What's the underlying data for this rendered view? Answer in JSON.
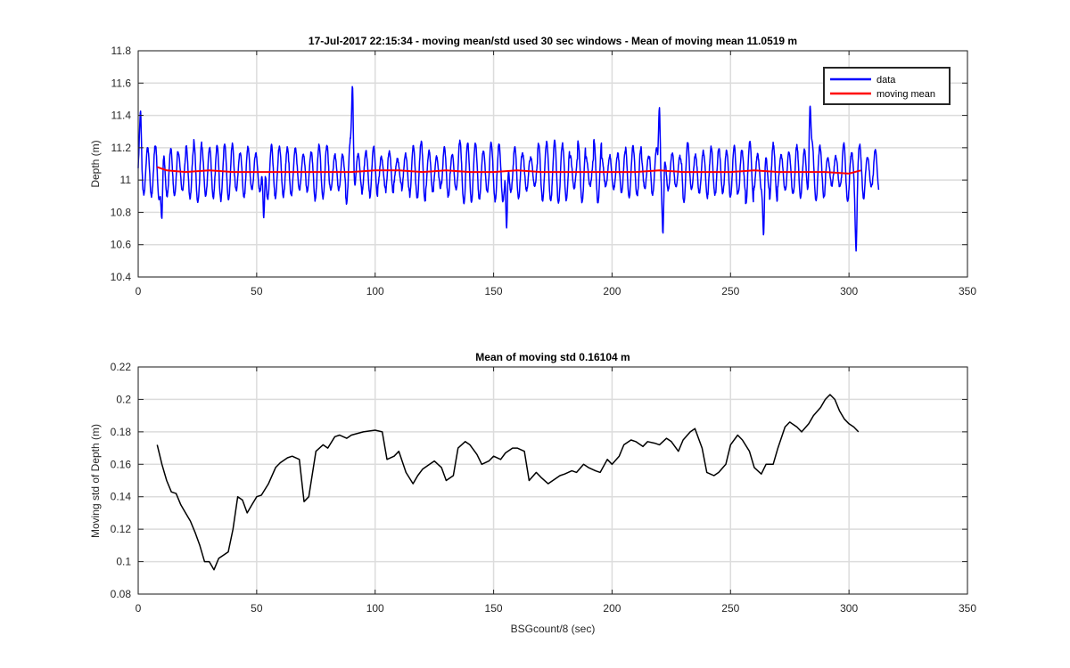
{
  "figure": {
    "background": "#ffffff"
  },
  "chart_data": [
    {
      "type": "line",
      "title": "17-Jul-2017 22:15:34 - moving mean/std used 30 sec windows - Mean of moving mean 11.0519 m",
      "xlabel": "",
      "ylabel": "Depth (m)",
      "xlim": [
        0,
        350
      ],
      "ylim": [
        10.4,
        11.8
      ],
      "xticks": [
        0,
        50,
        100,
        150,
        200,
        250,
        300,
        350
      ],
      "yticks": [
        10.4,
        10.6,
        10.8,
        11,
        11.2,
        11.4,
        11.6,
        11.8
      ],
      "xtick_labels": [
        "0",
        "50",
        "100",
        "150",
        "200",
        "250",
        "300",
        "350"
      ],
      "ytick_labels": [
        "10.4",
        "10.6",
        "10.8",
        "11",
        "11.2",
        "11.4",
        "11.6",
        "11.8"
      ],
      "grid": true,
      "legend": {
        "location": "top-right",
        "entries": [
          "data",
          "moving mean"
        ]
      },
      "series": [
        {
          "name": "data",
          "color": "#0000ff",
          "generator": {
            "x_start": 0,
            "x_end": 312.5,
            "step": 0.125,
            "mean": 11.05,
            "period_sec": 3.3,
            "amplitude_mean": 0.14,
            "peaks": [
              [
                1,
                0.25
              ],
              [
                10,
                -0.37
              ],
              [
                53,
                -0.4
              ],
              [
                90.5,
                0.56
              ],
              [
                155.5,
                -0.46
              ],
              [
                220,
                0.47
              ],
              [
                221.5,
                -0.42
              ],
              [
                264,
                -0.4
              ],
              [
                283.5,
                0.44
              ],
              [
                303,
                -0.38
              ]
            ]
          }
        },
        {
          "name": "moving mean",
          "color": "#ff0000",
          "x": [
            8,
            12,
            20,
            30,
            40,
            50,
            60,
            70,
            80,
            90,
            100,
            110,
            120,
            130,
            140,
            150,
            160,
            170,
            180,
            190,
            200,
            210,
            220,
            230,
            240,
            250,
            260,
            270,
            280,
            290,
            300,
            305
          ],
          "y": [
            11.08,
            11.06,
            11.05,
            11.06,
            11.05,
            11.05,
            11.05,
            11.05,
            11.05,
            11.05,
            11.06,
            11.06,
            11.05,
            11.06,
            11.05,
            11.05,
            11.06,
            11.05,
            11.05,
            11.05,
            11.05,
            11.05,
            11.06,
            11.05,
            11.05,
            11.05,
            11.06,
            11.05,
            11.05,
            11.05,
            11.04,
            11.06
          ]
        }
      ]
    },
    {
      "type": "line",
      "title": "Mean of moving std 0.16104 m",
      "xlabel": "BSGcount/8 (sec)",
      "ylabel": "Moving std of Depth (m)",
      "xlim": [
        0,
        350
      ],
      "ylim": [
        0.08,
        0.22
      ],
      "xticks": [
        0,
        50,
        100,
        150,
        200,
        250,
        300,
        350
      ],
      "yticks": [
        0.08,
        0.1,
        0.12,
        0.14,
        0.16,
        0.18,
        0.2,
        0.22
      ],
      "xtick_labels": [
        "0",
        "50",
        "100",
        "150",
        "200",
        "250",
        "300",
        "350"
      ],
      "ytick_labels": [
        "0.08",
        "0.1",
        "0.12",
        "0.14",
        "0.16",
        "0.18",
        "0.2",
        "0.22"
      ],
      "grid": true,
      "series": [
        {
          "name": "moving std",
          "color": "#000000",
          "x": [
            8,
            10,
            12,
            14,
            16,
            18,
            20,
            22,
            24,
            26,
            28,
            30,
            32,
            34,
            36,
            38,
            40,
            42,
            44,
            46,
            48,
            50,
            52,
            55,
            58,
            60,
            63,
            65,
            68,
            70,
            72,
            75,
            78,
            80,
            83,
            85,
            88,
            90,
            95,
            100,
            103,
            105,
            108,
            110,
            113,
            116,
            118,
            120,
            123,
            125,
            128,
            130,
            133,
            135,
            138,
            140,
            143,
            145,
            148,
            150,
            153,
            155,
            158,
            160,
            163,
            165,
            168,
            170,
            173,
            175,
            178,
            180,
            183,
            185,
            188,
            190,
            193,
            195,
            198,
            200,
            203,
            205,
            208,
            210,
            213,
            215,
            218,
            220,
            223,
            225,
            228,
            230,
            233,
            235,
            238,
            240,
            243,
            245,
            248,
            250,
            253,
            255,
            258,
            260,
            263,
            265,
            268,
            270,
            273,
            275,
            278,
            280,
            283,
            285,
            288,
            290,
            292,
            294,
            296,
            298,
            300,
            302,
            304
          ],
          "y": [
            0.172,
            0.16,
            0.15,
            0.143,
            0.142,
            0.135,
            0.13,
            0.125,
            0.118,
            0.11,
            0.1,
            0.1,
            0.095,
            0.102,
            0.104,
            0.106,
            0.12,
            0.14,
            0.138,
            0.13,
            0.135,
            0.14,
            0.141,
            0.148,
            0.158,
            0.161,
            0.164,
            0.165,
            0.163,
            0.137,
            0.14,
            0.168,
            0.172,
            0.17,
            0.177,
            0.178,
            0.176,
            0.178,
            0.18,
            0.181,
            0.18,
            0.163,
            0.165,
            0.168,
            0.155,
            0.148,
            0.153,
            0.157,
            0.16,
            0.162,
            0.158,
            0.15,
            0.153,
            0.17,
            0.174,
            0.172,
            0.166,
            0.16,
            0.162,
            0.165,
            0.163,
            0.167,
            0.17,
            0.17,
            0.168,
            0.15,
            0.155,
            0.152,
            0.148,
            0.15,
            0.153,
            0.154,
            0.156,
            0.155,
            0.16,
            0.158,
            0.156,
            0.155,
            0.163,
            0.16,
            0.165,
            0.172,
            0.175,
            0.174,
            0.171,
            0.174,
            0.173,
            0.172,
            0.176,
            0.174,
            0.168,
            0.175,
            0.18,
            0.182,
            0.17,
            0.155,
            0.153,
            0.155,
            0.16,
            0.172,
            0.178,
            0.175,
            0.168,
            0.158,
            0.154,
            0.16,
            0.16,
            0.17,
            0.183,
            0.186,
            0.183,
            0.18,
            0.185,
            0.19,
            0.195,
            0.2,
            0.203,
            0.2,
            0.193,
            0.188,
            0.185,
            0.183,
            0.18
          ]
        }
      ]
    }
  ]
}
